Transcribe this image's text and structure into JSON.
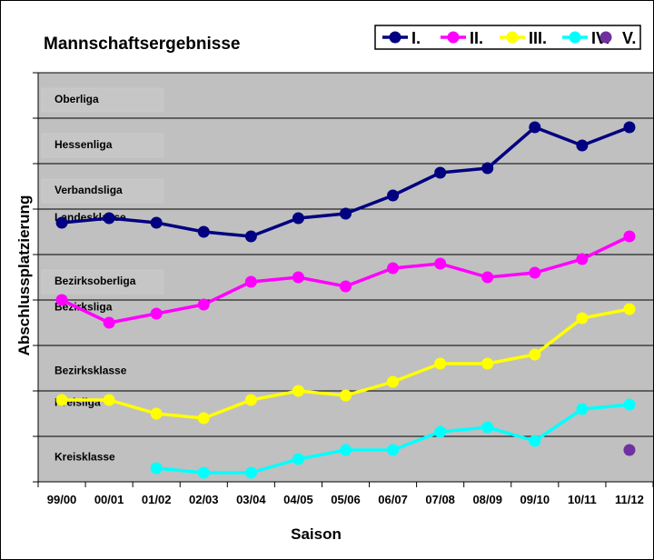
{
  "chart_data": {
    "type": "line",
    "title": "Mannschaftsergebnisse",
    "xlabel": "Saison",
    "ylabel": "Abschlussplatzierung",
    "categories": [
      "99/00",
      "00/01",
      "01/02",
      "02/03",
      "03/04",
      "04/05",
      "05/06",
      "06/07",
      "07/08",
      "08/09",
      "09/10",
      "10/11",
      "11/12"
    ],
    "ylim": [
      0,
      9
    ],
    "grid": true,
    "legend_position": "top-right",
    "league_labels": [
      "Oberliga",
      "Hessenliga",
      "Verbandsliga",
      "Landesklasse",
      "Bezirksoberliga",
      "Bezirksliga",
      "Bezirksklasse",
      "Kreisliga",
      "Kreisklasse"
    ],
    "series": [
      {
        "name": "I.",
        "color": "#000080",
        "values": [
          5.7,
          5.8,
          5.7,
          5.5,
          5.4,
          5.8,
          5.9,
          6.3,
          6.8,
          6.9,
          7.8,
          7.4,
          7.8
        ]
      },
      {
        "name": "II.",
        "color": "#ff00ff",
        "values": [
          4.0,
          3.5,
          3.7,
          3.9,
          4.4,
          4.5,
          4.3,
          4.7,
          4.8,
          4.5,
          4.6,
          4.9,
          5.4
        ]
      },
      {
        "name": "III.",
        "color": "#ffff00",
        "values": [
          1.8,
          1.8,
          1.5,
          1.4,
          1.8,
          2.0,
          1.9,
          2.2,
          2.6,
          2.6,
          2.8,
          3.6,
          3.8
        ]
      },
      {
        "name": "IV.",
        "color": "#00ffff",
        "values": [
          null,
          null,
          0.3,
          0.2,
          0.2,
          0.5,
          0.7,
          0.7,
          1.1,
          1.2,
          0.9,
          1.6,
          1.7
        ]
      },
      {
        "name": "V.",
        "color": "#7030a0",
        "values": [
          null,
          null,
          null,
          null,
          null,
          null,
          null,
          null,
          null,
          null,
          null,
          null,
          0.7
        ]
      }
    ]
  }
}
